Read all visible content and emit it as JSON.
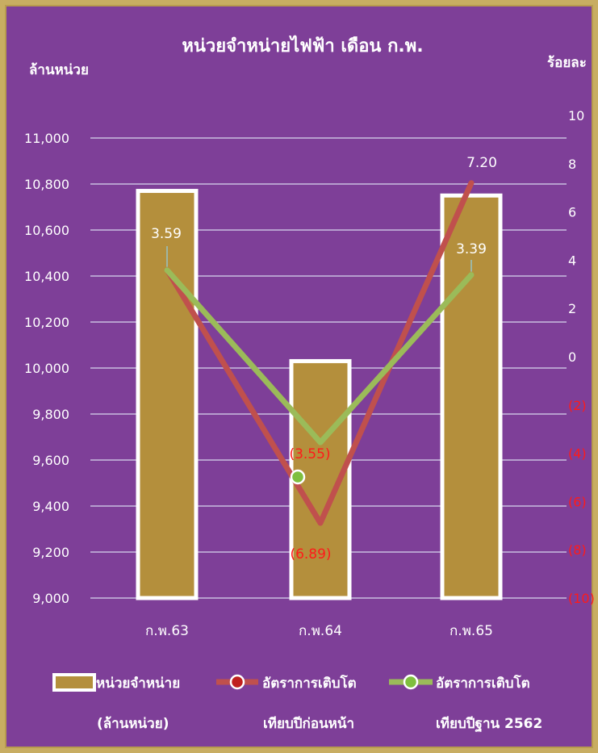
{
  "chart_data": {
    "type": "bar",
    "title": "หน่วยจำหน่ายไฟฟ้า เดือน ก.พ.",
    "ylabel": "ล้านหน่วย",
    "y2label": "ร้อยละ",
    "categories": [
      "ก.พ.63",
      "ก.พ.64",
      "ก.พ.65"
    ],
    "ylim": [
      9000,
      11000
    ],
    "y_ticks": [
      "9,000",
      "9,200",
      "9,400",
      "9,600",
      "9,800",
      "10,000",
      "10,200",
      "10,400",
      "10,600",
      "10,800",
      "11,000"
    ],
    "y2lim": [
      -10,
      10
    ],
    "y2_ticks": [
      "(10)",
      "(8)",
      "(6)",
      "(4)",
      "(2)",
      "0",
      "2",
      "4",
      "6",
      "8",
      "10"
    ],
    "series": [
      {
        "name": "หน่วยจำหน่าย (ล้านหน่วย)",
        "type": "bar",
        "axis": "left",
        "values": [
          10770,
          10030,
          10750
        ],
        "color": "#b48f3c"
      },
      {
        "name": "อัตราการเติบโต เทียบปีก่อนหน้า",
        "type": "line",
        "axis": "right",
        "values": [
          3.6,
          -6.89,
          7.2
        ],
        "labels": [
          "",
          "(6.89)",
          "7.20"
        ],
        "color": "#c0504d"
      },
      {
        "name": "อัตราการเติบโต เทียบปีฐาน 2562",
        "type": "line",
        "axis": "right",
        "values": [
          3.59,
          -3.55,
          3.39
        ],
        "labels": [
          "3.59",
          "(3.55)",
          "3.39"
        ],
        "color": "#9bbb59"
      }
    ],
    "legend_lines": [
      [
        "หน่วยจำหน่าย",
        "(ล้านหน่วย)"
      ],
      [
        "อัตราการเติบโต",
        "เทียบปีก่อนหน้า"
      ],
      [
        "อัตราการเติบโต",
        "เทียบปีฐาน 2562"
      ]
    ],
    "legend_position": "bottom",
    "grid": true
  }
}
